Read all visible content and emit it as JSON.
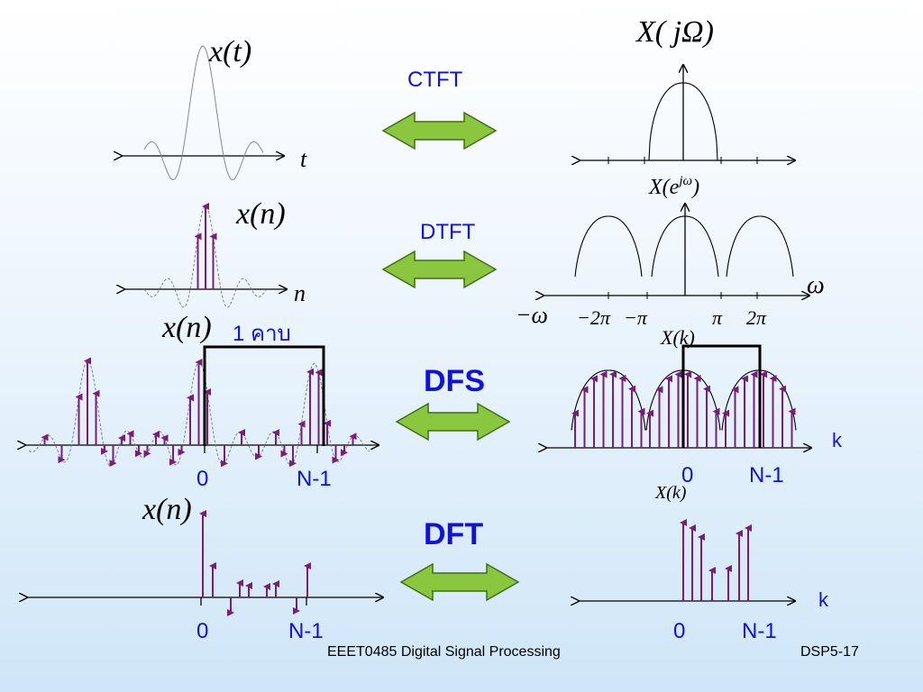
{
  "colors": {
    "label": "#1111dd",
    "arrow_fill": "#8bc63f",
    "arrow_stroke": "#3f6f14",
    "stem": "#7b1c7b",
    "curve": "#000000"
  },
  "icons": {
    "transform_pair": "double-headed-arrow"
  },
  "rows": {
    "ctft": {
      "label": "CTFT",
      "time_label": "x(t)",
      "time_axis": "t",
      "freq_label": "X( jΩ)"
    },
    "dtft": {
      "label": "DTFT",
      "time_label": "x(n)",
      "time_axis": "n",
      "freq_label": "X(e",
      "freq_label_sup": "jω",
      "freq_label_close": ")",
      "freq_axis": "ω",
      "freq_ticks": [
        "−ω",
        "−2π",
        "−π",
        "π",
        "2π"
      ]
    },
    "dfs": {
      "label": "DFS",
      "time_label": "x(n)",
      "period_note": "1 คาบ",
      "time_ticks": [
        "0",
        "N-1"
      ],
      "freq_label": "X(k)",
      "freq_axis": "k",
      "freq_ticks": [
        "0",
        "N-1"
      ]
    },
    "dft": {
      "label": "DFT",
      "time_label": "x(n)",
      "time_ticks": [
        "0",
        "N-1"
      ],
      "freq_label": "X(k)",
      "freq_axis": "k",
      "freq_ticks": [
        "0",
        "N-1"
      ]
    }
  },
  "footer": {
    "course": "EEET0485 Digital Signal Processing",
    "slide_id": "DSP5-17"
  }
}
